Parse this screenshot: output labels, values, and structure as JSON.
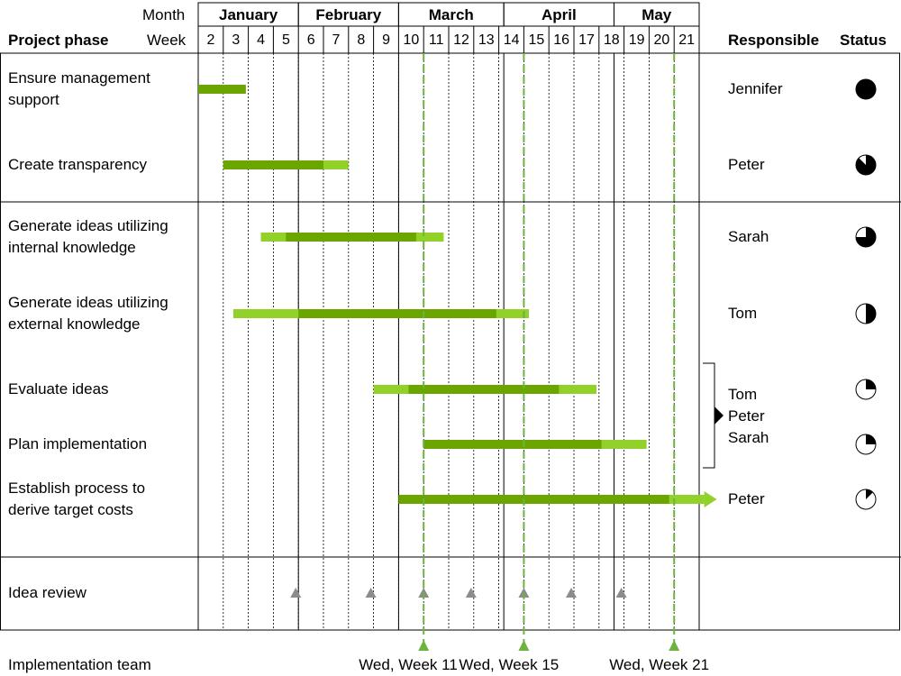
{
  "header": {
    "month_label": "Month",
    "week_label": "Week",
    "phase_label": "Project phase",
    "responsible_label": "Responsible",
    "status_label": "Status"
  },
  "months": [
    "January",
    "February",
    "March",
    "April",
    "May"
  ],
  "weeks": [
    "2",
    "3",
    "4",
    "5",
    "6",
    "7",
    "8",
    "9",
    "10",
    "11",
    "12",
    "13",
    "14",
    "15",
    "16",
    "17",
    "18",
    "19",
    "20",
    "21"
  ],
  "phases": [
    {
      "label": "Ensure management\nsupport",
      "responsible": "Jennifer",
      "status_fraction": 1.0
    },
    {
      "label": "Create transparency",
      "responsible": "Peter",
      "status_fraction": 0.875
    },
    {
      "label": "Generate ideas utilizing\ninternal knowledge",
      "responsible": "Sarah",
      "status_fraction": 0.75
    },
    {
      "label": "Generate ideas utilizing\nexternal knowledge",
      "responsible": "Tom",
      "status_fraction": 0.5
    },
    {
      "label": "Evaluate ideas",
      "responsible": "",
      "status_fraction": 0.25
    },
    {
      "label": "Plan implementation",
      "responsible": "",
      "status_fraction": 0.25
    },
    {
      "label": "Establish process to\nderive target costs",
      "responsible": "Peter",
      "status_fraction": 0.125
    }
  ],
  "shared_responsible": [
    "Tom",
    "Peter",
    "Sarah"
  ],
  "bars": [
    {
      "light_start": 2,
      "dark_start": 2,
      "dark_end": 3.9,
      "light_end": 3.9
    },
    {
      "light_start": 3,
      "dark_start": 3,
      "dark_end": 7,
      "light_end": 8
    },
    {
      "light_start": 4.5,
      "dark_start": 5.5,
      "dark_end": 10.7,
      "light_end": 11.8
    },
    {
      "light_start": 3.4,
      "dark_start": 6,
      "dark_end": 13.9,
      "light_end": 15.2
    },
    {
      "light_start": 9,
      "dark_start": 10.4,
      "dark_end": 16.4,
      "light_end": 17.9
    },
    {
      "light_start": 11,
      "dark_start": 11,
      "dark_end": 18.1,
      "light_end": 19.9
    },
    {
      "light_start": 10,
      "dark_start": 10,
      "dark_end": 20.8,
      "light_end": 22.2,
      "arrow": true
    }
  ],
  "review": {
    "label": "Idea review",
    "markers": [
      6,
      9,
      11,
      13,
      15,
      17,
      19
    ]
  },
  "team": {
    "label": "Implementation team",
    "milestones": [
      {
        "week": 11,
        "label": "Wed, Week 11"
      },
      {
        "week": 15,
        "label": "Wed, Week 15"
      },
      {
        "week": 21,
        "label": "Wed, Week 21"
      }
    ]
  },
  "colors": {
    "dark_green": "#6aa500",
    "light_green": "#92d12a",
    "milestone_green": "#6cb33f",
    "marker_gray": "#8c8c8c"
  }
}
